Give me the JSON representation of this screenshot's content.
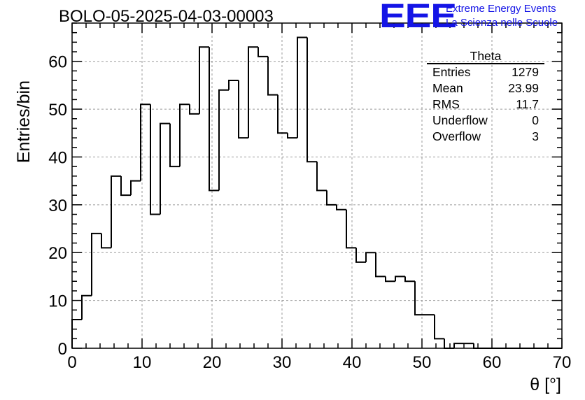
{
  "header": {
    "run_title": "BOLO-05-2025-04-03-00003",
    "logo_text": "EEE",
    "logo_line1": "Extreme Energy Events",
    "logo_line2": "La Scienza nelle Scuole",
    "logo_color": "#1414e6"
  },
  "stats_box": {
    "title": "Theta",
    "rows": [
      {
        "label": "Entries",
        "value": "1279"
      },
      {
        "label": "Mean",
        "value": "23.99"
      },
      {
        "label": "RMS",
        "value": "11.7"
      },
      {
        "label": "Underflow",
        "value": "0"
      },
      {
        "label": "Overflow",
        "value": "3"
      }
    ]
  },
  "chart_data": {
    "type": "bar",
    "style": "step-histogram",
    "xlabel": "θ [°]",
    "ylabel": "Entries/bin",
    "xlim": [
      0,
      70
    ],
    "ylim": [
      0,
      68
    ],
    "bin_width": 1.4,
    "x_ticks": [
      0,
      10,
      20,
      30,
      40,
      50,
      60,
      70
    ],
    "y_ticks": [
      0,
      10,
      20,
      30,
      40,
      50,
      60
    ],
    "grid": true,
    "bin_edges_start": 0,
    "values": [
      6,
      11,
      24,
      21,
      36,
      32,
      35,
      51,
      28,
      47,
      38,
      51,
      49,
      63,
      33,
      54,
      56,
      44,
      63,
      61,
      53,
      45,
      44,
      65,
      39,
      33,
      30,
      29,
      21,
      18,
      20,
      15,
      14,
      15,
      14,
      7,
      7,
      2,
      0,
      1,
      1,
      0,
      0,
      0,
      0,
      0,
      0,
      0,
      0,
      0
    ]
  }
}
